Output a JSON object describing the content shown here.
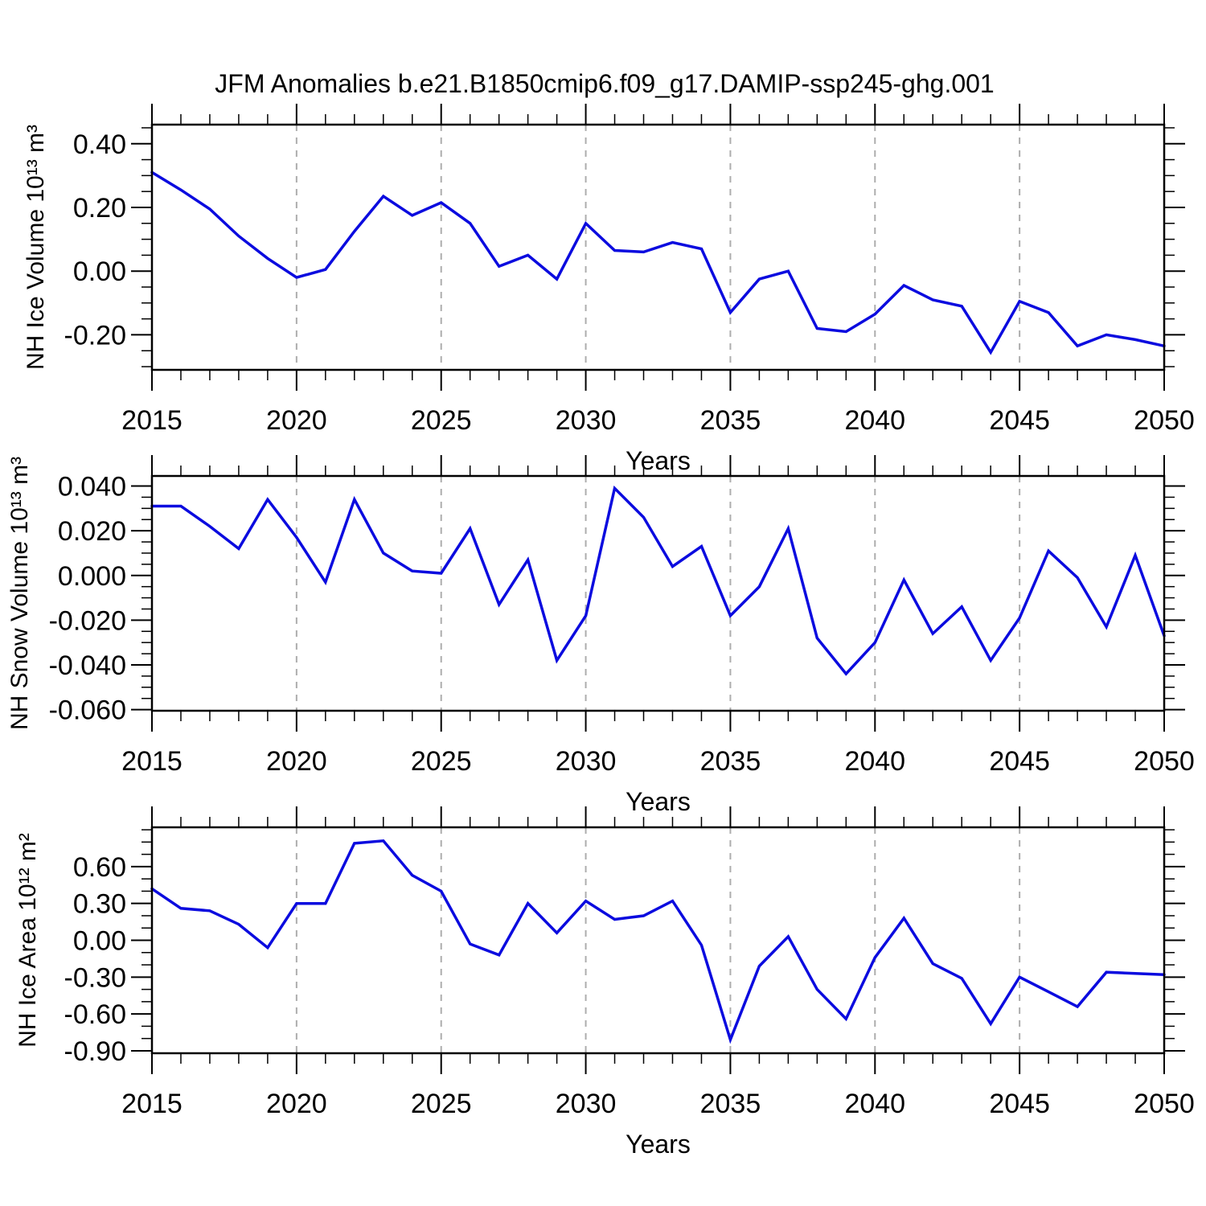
{
  "title": "JFM Anomalies b.e21.B1850cmip6.f09_g17.DAMIP-ssp245-ghg.001",
  "colors": {
    "line": "#0b0bdf",
    "grid": "#adadad",
    "axis": "#000000",
    "background": "#ffffff",
    "text": "#000000"
  },
  "x_axis": {
    "label": "Years",
    "min": 2015,
    "max": 2050,
    "major_ticks": [
      2015,
      2020,
      2025,
      2030,
      2035,
      2040,
      2045,
      2050
    ],
    "minor_step": 1,
    "gridline_years": [
      2020,
      2025,
      2030,
      2035,
      2040,
      2045
    ]
  },
  "chart_data": [
    {
      "type": "line",
      "name": "nh-ice-volume",
      "title": "",
      "xlabel": "Years",
      "ylabel": "NH Ice Volume 10¹³ m³",
      "grid": "vertical-dashed",
      "legend": false,
      "ylim": [
        -0.31,
        0.46
      ],
      "yticks": [
        {
          "v": 0.4,
          "label": "0.40"
        },
        {
          "v": 0.2,
          "label": "0.20"
        },
        {
          "v": 0.0,
          "label": "0.00"
        },
        {
          "v": -0.2,
          "label": "-0.20"
        }
      ],
      "yminor_step": 0.05,
      "x": [
        2015,
        2016,
        2017,
        2018,
        2019,
        2020,
        2021,
        2022,
        2023,
        2024,
        2025,
        2026,
        2027,
        2028,
        2029,
        2030,
        2031,
        2032,
        2033,
        2034,
        2035,
        2036,
        2037,
        2038,
        2039,
        2040,
        2041,
        2042,
        2043,
        2044,
        2045,
        2046,
        2047,
        2048,
        2049,
        2050
      ],
      "values": [
        0.31,
        0.255,
        0.195,
        0.11,
        0.04,
        -0.02,
        0.005,
        0.125,
        0.235,
        0.175,
        0.215,
        0.15,
        0.015,
        0.05,
        -0.025,
        0.15,
        0.065,
        0.06,
        0.09,
        0.07,
        -0.13,
        -0.025,
        0.0,
        -0.18,
        -0.19,
        -0.135,
        -0.045,
        -0.09,
        -0.11,
        -0.255,
        -0.095,
        -0.13,
        -0.235,
        -0.2,
        -0.215,
        -0.235
      ]
    },
    {
      "type": "line",
      "name": "nh-snow-volume",
      "title": "",
      "xlabel": "Years",
      "ylabel": "NH Snow Volume 10¹³ m³",
      "grid": "vertical-dashed",
      "legend": false,
      "ylim": [
        -0.0605,
        0.0445
      ],
      "yticks": [
        {
          "v": 0.04,
          "label": "0.040"
        },
        {
          "v": 0.02,
          "label": "0.020"
        },
        {
          "v": 0.0,
          "label": "0.000"
        },
        {
          "v": -0.02,
          "label": "-0.020"
        },
        {
          "v": -0.04,
          "label": "-0.040"
        },
        {
          "v": -0.06,
          "label": "-0.060"
        }
      ],
      "yminor_step": 0.005,
      "x": [
        2015,
        2016,
        2017,
        2018,
        2019,
        2020,
        2021,
        2022,
        2023,
        2024,
        2025,
        2026,
        2027,
        2028,
        2029,
        2030,
        2031,
        2032,
        2033,
        2034,
        2035,
        2036,
        2037,
        2038,
        2039,
        2040,
        2041,
        2042,
        2043,
        2044,
        2045,
        2046,
        2047,
        2048,
        2049,
        2050
      ],
      "values": [
        0.031,
        0.031,
        0.022,
        0.012,
        0.034,
        0.017,
        -0.003,
        0.034,
        0.01,
        0.002,
        0.001,
        0.021,
        -0.013,
        0.007,
        -0.038,
        -0.018,
        0.039,
        0.026,
        0.004,
        0.013,
        -0.018,
        -0.005,
        0.021,
        -0.028,
        -0.044,
        -0.03,
        -0.002,
        -0.026,
        -0.014,
        -0.038,
        -0.019,
        0.011,
        -0.001,
        -0.023,
        0.009,
        -0.027
      ]
    },
    {
      "type": "line",
      "name": "nh-ice-area",
      "title": "",
      "xlabel": "Years",
      "ylabel": "NH Ice Area 10¹² m²",
      "grid": "vertical-dashed",
      "legend": false,
      "ylim": [
        -0.92,
        0.92
      ],
      "yticks": [
        {
          "v": 0.6,
          "label": "0.60"
        },
        {
          "v": 0.3,
          "label": "0.30"
        },
        {
          "v": 0.0,
          "label": "0.00"
        },
        {
          "v": -0.3,
          "label": "-0.30"
        },
        {
          "v": -0.6,
          "label": "-0.60"
        },
        {
          "v": -0.9,
          "label": "-0.90"
        }
      ],
      "yminor_step": 0.1,
      "x": [
        2015,
        2016,
        2017,
        2018,
        2019,
        2020,
        2021,
        2022,
        2023,
        2024,
        2025,
        2026,
        2027,
        2028,
        2029,
        2030,
        2031,
        2032,
        2033,
        2034,
        2035,
        2036,
        2037,
        2038,
        2039,
        2040,
        2041,
        2042,
        2043,
        2044,
        2045,
        2046,
        2047,
        2048,
        2049,
        2050
      ],
      "values": [
        0.42,
        0.26,
        0.24,
        0.13,
        -0.06,
        0.3,
        0.3,
        0.79,
        0.81,
        0.53,
        0.4,
        -0.03,
        -0.12,
        0.3,
        0.06,
        0.32,
        0.17,
        0.2,
        0.32,
        -0.04,
        -0.81,
        -0.21,
        0.03,
        -0.4,
        -0.64,
        -0.14,
        0.18,
        -0.19,
        -0.31,
        -0.68,
        -0.3,
        -0.42,
        -0.54,
        -0.26,
        -0.27,
        -0.28
      ]
    }
  ]
}
